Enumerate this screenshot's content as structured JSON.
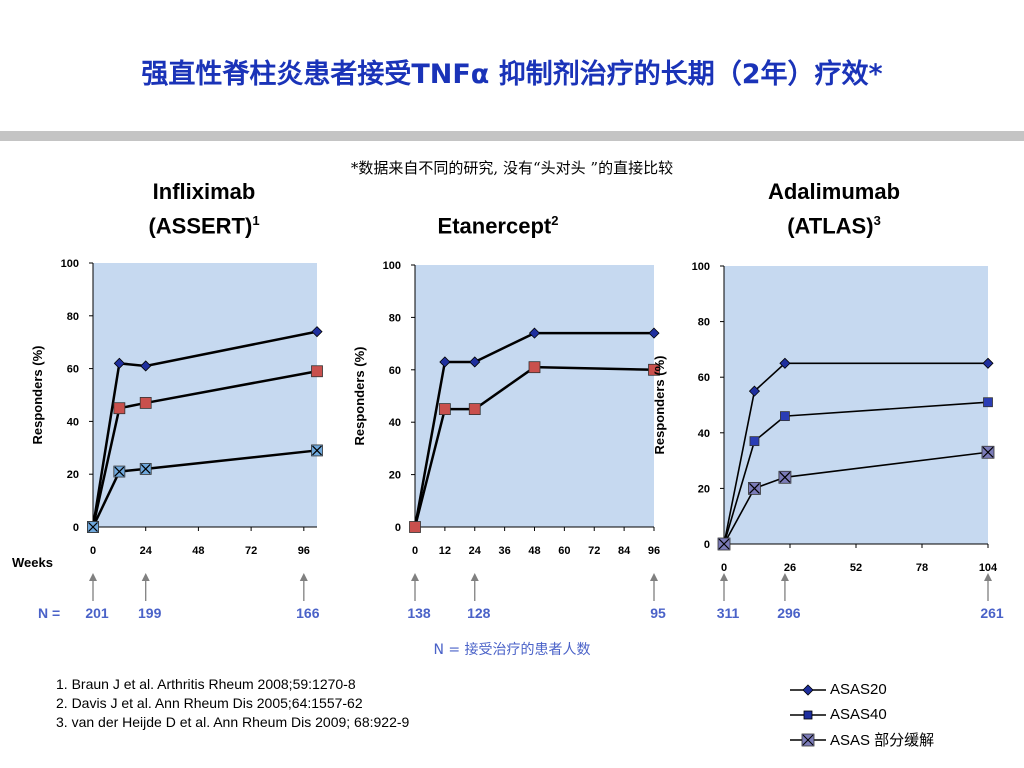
{
  "title": "强直性脊柱炎患者接受TNFα 抑制剂治疗的长期（2年）疗效*",
  "note": "*数据来自不同的研究, 没有“头对头 ”的直接比较",
  "n_label": "N = 接受治疗的患者人数",
  "references": [
    "1. Braun J et al. Arthritis Rheum 2008;59:1270-8",
    "2. Davis J et al. Ann Rheum Dis 2005;64:1557-62",
    "3. van der Heijde D et al. Ann Rheum Dis 2009; 68:922-9"
  ],
  "legend": [
    {
      "label": "ASAS20",
      "marker": "diamond",
      "color": "#1f2f9e"
    },
    {
      "label": "ASAS40",
      "marker": "square",
      "color": "#1f2f9e"
    },
    {
      "label": "ASAS 部分缓解",
      "marker": "xbox",
      "color": "#7b7bb8"
    }
  ],
  "colors": {
    "plot_bg": "#c6d9f0",
    "title": "#1a33b8",
    "n_label": "#4a62c8"
  },
  "chart_data": [
    {
      "type": "line",
      "title_line1": "Infliximab",
      "title_line2": "(ASSERT)",
      "title_sup": "1",
      "ylabel": "Responders (%)",
      "xlabel": "Weeks",
      "ylim": [
        0,
        100
      ],
      "xlim": [
        0,
        102
      ],
      "xticks": [
        0,
        24,
        48,
        72,
        96
      ],
      "yticks": [
        0,
        20,
        40,
        60,
        80,
        100
      ],
      "n_prefix": "N =",
      "n_marks": [
        {
          "x": 0,
          "n": "201"
        },
        {
          "x": 24,
          "n": "199"
        },
        {
          "x": 96,
          "n": "166"
        }
      ],
      "series": [
        {
          "marker": "diamond",
          "points": [
            [
              0,
              0
            ],
            [
              12,
              62
            ],
            [
              24,
              61
            ],
            [
              102,
              74
            ]
          ]
        },
        {
          "marker": "square",
          "points": [
            [
              0,
              0
            ],
            [
              12,
              45
            ],
            [
              24,
              47
            ],
            [
              102,
              59
            ]
          ]
        },
        {
          "marker": "xbox",
          "points": [
            [
              0,
              0
            ],
            [
              12,
              21
            ],
            [
              24,
              22
            ],
            [
              102,
              29
            ]
          ]
        }
      ]
    },
    {
      "type": "line",
      "title_line1": "Etanercept",
      "title_line2": "",
      "title_sup": "2",
      "ylabel": "Responders (%)",
      "xlabel": "",
      "ylim": [
        0,
        100
      ],
      "xlim": [
        0,
        96
      ],
      "xticks": [
        0,
        12,
        24,
        36,
        48,
        60,
        72,
        84,
        96
      ],
      "yticks": [
        0,
        20,
        40,
        60,
        80,
        100
      ],
      "n_prefix": "",
      "n_marks": [
        {
          "x": 0,
          "n": "138"
        },
        {
          "x": 24,
          "n": "128"
        },
        {
          "x": 96,
          "n": "95"
        }
      ],
      "series": [
        {
          "marker": "diamond",
          "points": [
            [
              0,
              0
            ],
            [
              12,
              63
            ],
            [
              24,
              63
            ],
            [
              48,
              74
            ],
            [
              96,
              74
            ]
          ]
        },
        {
          "marker": "square",
          "points": [
            [
              0,
              0
            ],
            [
              12,
              45
            ],
            [
              24,
              45
            ],
            [
              48,
              61
            ],
            [
              96,
              60
            ]
          ]
        }
      ]
    },
    {
      "type": "line",
      "title_line1": "Adalimumab",
      "title_line2": "(ATLAS)",
      "title_sup": "3",
      "ylabel": "Responders (%)",
      "xlabel": "",
      "ylim": [
        0,
        100
      ],
      "xlim": [
        0,
        104
      ],
      "xticks": [
        0,
        26,
        52,
        78,
        104
      ],
      "yticks": [
        0,
        20,
        40,
        60,
        80,
        100
      ],
      "n_prefix": "",
      "n_marks": [
        {
          "x": 0,
          "n": "311"
        },
        {
          "x": 24,
          "n": "296"
        },
        {
          "x": 104,
          "n": "261"
        }
      ],
      "series": [
        {
          "marker": "diamond",
          "points": [
            [
              0,
              0
            ],
            [
              12,
              55
            ],
            [
              24,
              65
            ],
            [
              104,
              65
            ]
          ]
        },
        {
          "marker": "square",
          "points": [
            [
              0,
              0
            ],
            [
              12,
              37
            ],
            [
              24,
              46
            ],
            [
              104,
              51
            ]
          ]
        },
        {
          "marker": "xbox",
          "points": [
            [
              0,
              0
            ],
            [
              12,
              20
            ],
            [
              24,
              24
            ],
            [
              104,
              33
            ]
          ]
        }
      ]
    }
  ]
}
